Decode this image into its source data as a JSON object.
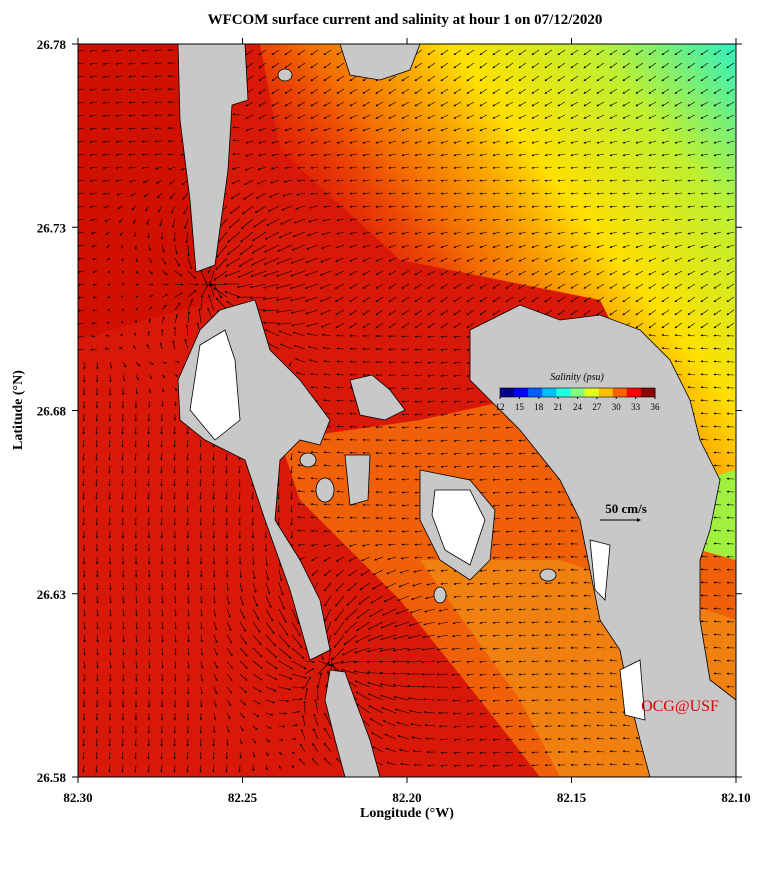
{
  "chart_data": {
    "type": "map",
    "title": "WFCOM surface current and salinity at hour 1 on 07/12/2020",
    "x_label": "Longitude (°W)",
    "y_label": "Latitude (°N)",
    "xlim": [
      82.3,
      82.1
    ],
    "xticks": [
      {
        "value": 82.3,
        "label": "82.30"
      },
      82.25,
      {
        "value": 82.2,
        "label": "82.20"
      },
      82.15,
      {
        "value": 82.1,
        "label": "82.10"
      }
    ],
    "ylim": [
      26.58,
      26.78
    ],
    "yticks": [
      26.58,
      26.63,
      26.68,
      26.73,
      26.78
    ],
    "colorbar": {
      "label": "Salinity (psu)",
      "lim": [
        12,
        36
      ],
      "ticks": [
        12,
        15,
        18,
        21,
        24,
        27,
        30,
        33,
        36
      ],
      "colors": [
        "#00008f",
        "#0000ff",
        "#0060ff",
        "#00bfff",
        "#20ffdf",
        "#80ff80",
        "#dfff20",
        "#ffbf00",
        "#ff6000",
        "#ff0000",
        "#8f0000"
      ]
    },
    "scale_label": "50 cm/s",
    "credit": "OCG@USF"
  }
}
